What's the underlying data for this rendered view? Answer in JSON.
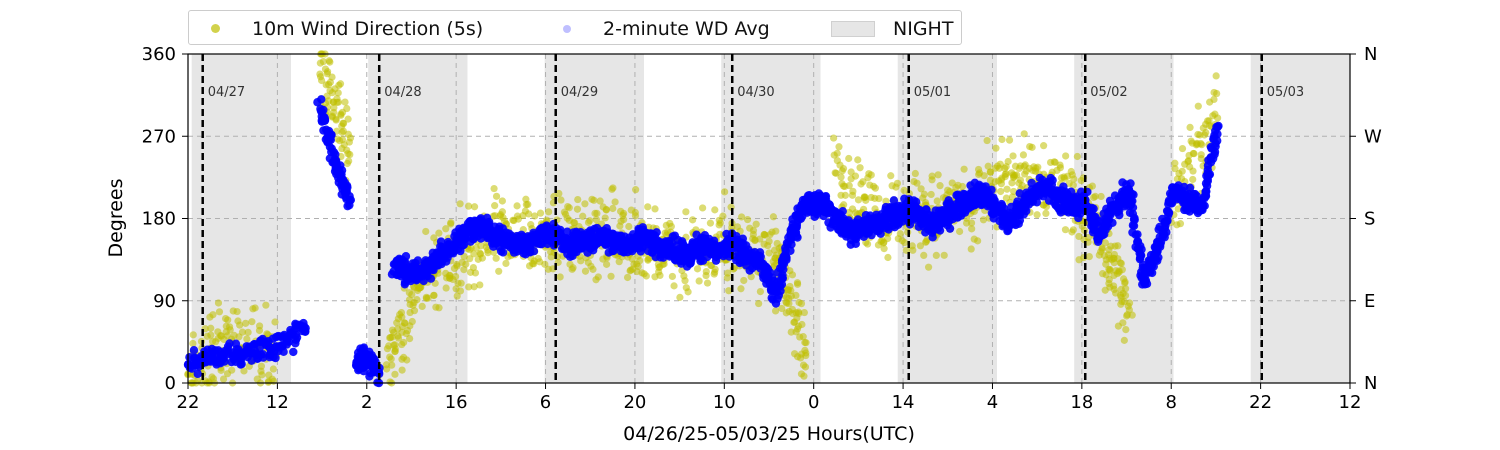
{
  "chart_data": {
    "type": "scatter",
    "title": "",
    "xlabel": "04/26/25-05/03/25  Hours(UTC)",
    "ylabel": "Degrees",
    "ylim": [
      0,
      360
    ],
    "xlim": [
      "2025-04-26T22:00",
      "2025-05-03T12:00"
    ],
    "y_ticks": [
      "0",
      "90",
      "180",
      "270",
      "360"
    ],
    "y_ticks_right": [
      "N",
      "E",
      "S",
      "W",
      "N"
    ],
    "x_ticks": [
      "22",
      "12",
      "2",
      "16",
      "6",
      "20",
      "10",
      "0",
      "14",
      "4",
      "18",
      "8",
      "22",
      "12"
    ],
    "day_labels": [
      "04/27",
      "04/28",
      "04/29",
      "04/30",
      "05/01",
      "05/02",
      "05/03"
    ],
    "grid": true,
    "legend_position": "top",
    "legend": [
      "10m Wind Direction (5s)",
      "2-minute WD Avg",
      "NIGHT"
    ],
    "colors": {
      "raw": "#bfbf00",
      "avg": "#0000ff",
      "night": "#e6e6e6",
      "day_line": "#000000"
    },
    "night_periods": [
      [
        "2025-04-26T22:30",
        "2025-04-27T12:00"
      ],
      [
        "2025-04-27T22:30",
        "2025-04-28T12:00"
      ],
      [
        "2025-04-28T22:30",
        "2025-04-29T12:00"
      ],
      [
        "2025-04-29T22:30",
        "2025-04-30T12:00"
      ],
      [
        "2025-04-30T22:30",
        "2025-05-01T12:00"
      ],
      [
        "2025-05-01T22:30",
        "2025-05-02T12:00"
      ],
      [
        "2025-05-02T22:30",
        "2025-05-03T12:00"
      ]
    ],
    "series": [
      {
        "name": "2-minute WD Avg",
        "x": [
          "2025-04-26T22:00",
          "2025-04-27T02:00",
          "2025-04-27T06:00",
          "2025-04-27T10:00",
          "2025-04-27T14:00",
          "2025-04-27T16:00",
          "2025-04-27T18:00",
          "2025-04-27T20:00",
          "2025-04-27T21:00",
          "2025-04-27T22:00",
          "2025-04-28T00:00",
          "2025-04-28T02:00",
          "2025-04-28T04:00",
          "2025-04-28T06:00",
          "2025-04-28T08:00",
          "2025-04-28T10:00",
          "2025-04-28T12:00",
          "2025-04-28T14:00",
          "2025-04-28T16:00",
          "2025-04-28T18:00",
          "2025-04-28T20:00",
          "2025-04-28T22:00",
          "2025-04-29T00:00",
          "2025-04-29T02:00",
          "2025-04-29T04:00",
          "2025-04-29T06:00",
          "2025-04-29T08:00",
          "2025-04-29T10:00",
          "2025-04-29T12:00",
          "2025-04-29T14:00",
          "2025-04-29T16:00",
          "2025-04-29T18:00",
          "2025-04-29T20:00",
          "2025-04-29T22:00",
          "2025-04-30T00:00",
          "2025-04-30T02:00",
          "2025-04-30T04:00",
          "2025-04-30T06:00",
          "2025-04-30T08:00",
          "2025-04-30T10:00",
          "2025-04-30T11:00",
          "2025-04-30T12:00",
          "2025-04-30T14:00",
          "2025-04-30T16:00",
          "2025-04-30T18:00",
          "2025-04-30T20:00",
          "2025-04-30T22:00",
          "2025-05-01T00:00",
          "2025-05-01T02:00",
          "2025-05-01T04:00",
          "2025-05-01T06:00",
          "2025-05-01T08:00",
          "2025-05-01T10:00",
          "2025-05-01T12:00",
          "2025-05-01T14:00",
          "2025-05-01T16:00",
          "2025-05-01T18:00",
          "2025-05-01T20:00",
          "2025-05-01T22:00",
          "2025-05-02T00:00",
          "2025-05-02T02:00",
          "2025-05-02T04:00",
          "2025-05-02T06:00",
          "2025-05-02T08:00",
          "2025-05-02T10:00",
          "2025-05-02T12:00",
          "2025-05-02T14:00",
          "2025-05-02T16:00",
          "2025-05-02T18:00"
        ],
        "y": [
          20,
          30,
          35,
          40,
          60,
          300,
          240,
          200,
          20,
          30,
          10,
          130,
          120,
          125,
          140,
          150,
          165,
          170,
          160,
          155,
          150,
          165,
          160,
          150,
          155,
          160,
          155,
          150,
          160,
          150,
          145,
          140,
          150,
          145,
          150,
          140,
          130,
          100,
          165,
          195,
          195,
          200,
          180,
          165,
          170,
          175,
          185,
          190,
          180,
          175,
          190,
          200,
          210,
          190,
          175,
          200,
          215,
          205,
          195,
          200,
          160,
          195,
          210,
          110,
          150,
          210,
          200,
          195,
          280
        ]
      },
      {
        "name": "10m Wind Direction (5s)",
        "x": [
          "2025-04-26T22:00",
          "2025-04-27T04:00",
          "2025-04-27T10:00",
          "2025-04-27T16:00",
          "2025-04-27T20:00",
          "2025-04-28T01:00",
          "2025-04-28T06:00",
          "2025-04-28T12:00",
          "2025-04-28T18:00",
          "2025-04-29T00:00",
          "2025-04-29T06:00",
          "2025-04-29T12:00",
          "2025-04-29T18:00",
          "2025-04-30T00:00",
          "2025-04-30T06:00",
          "2025-04-30T10:00",
          "2025-04-30T14:00",
          "2025-04-30T20:00",
          "2025-05-01T02:00",
          "2025-05-01T08:00",
          "2025-05-01T14:00",
          "2025-05-01T20:00",
          "2025-05-02T02:00",
          "2025-05-02T06:00",
          "2025-05-02T12:00",
          "2025-05-02T18:00"
        ],
        "y": [
          10,
          45,
          30,
          350,
          250,
          20,
          110,
          150,
          160,
          160,
          165,
          150,
          140,
          150,
          140,
          30,
          230,
          175,
          180,
          200,
          230,
          210,
          170,
          80,
          200,
          290
        ]
      }
    ]
  }
}
